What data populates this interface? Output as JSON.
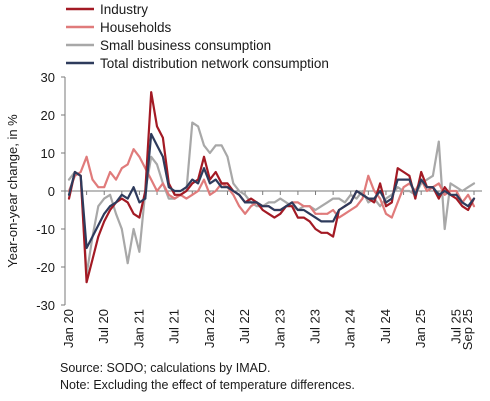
{
  "chart_data": {
    "type": "line",
    "title": "",
    "ylabel": "Year-on-year change, in %",
    "xlabel": "",
    "ylim": [
      -30,
      30
    ],
    "yticks": [
      -30,
      -20,
      -10,
      0,
      10,
      20,
      30
    ],
    "x_tick_labels": [
      "Jan 20",
      "Jul 20",
      "Jan 21",
      "Jul 21",
      "Jan 22",
      "Jul 22",
      "Jan 23",
      "Jul 23",
      "Jan 24",
      "Jul 24",
      "Jan 25",
      "Jul 25",
      "Sep 25"
    ],
    "x_tick_months": [
      0,
      6,
      12,
      18,
      24,
      30,
      36,
      42,
      48,
      54,
      60,
      66,
      68
    ],
    "legend_position": "top-left",
    "series": [
      {
        "name": "Industry",
        "color": "#a31a24",
        "values": [
          -2,
          5,
          4,
          -24,
          -18,
          -12,
          -8,
          -5,
          -3,
          -2,
          -3,
          -6,
          -7,
          0,
          26,
          17,
          14,
          2,
          -1,
          -1,
          0,
          2,
          3,
          9,
          3,
          5,
          2,
          2,
          0,
          -1,
          -3,
          -2,
          -3,
          -5,
          -6,
          -7,
          -6,
          -4,
          -4,
          -7,
          -7,
          -8,
          -10,
          -11,
          -11,
          -12,
          -5,
          -4,
          -3,
          0,
          -1,
          -2,
          -3,
          2,
          -4,
          -3,
          6,
          5,
          4,
          -2,
          5,
          1,
          1,
          -2,
          1,
          -1,
          -2,
          -4,
          -5,
          -2
        ]
      },
      {
        "name": "Households",
        "color": "#e07b7b",
        "values": [
          0,
          4,
          5,
          9,
          3,
          1,
          1,
          5,
          3,
          6,
          7,
          11,
          9,
          6,
          3,
          0,
          2,
          -1,
          -2,
          -1,
          -2,
          -1,
          0,
          3,
          -1,
          0,
          2,
          1,
          -1,
          -4,
          -6,
          -4,
          -3,
          -4,
          -4,
          -5,
          -5,
          -4,
          -3,
          -3,
          -4,
          -4,
          -6,
          -6,
          -6,
          -5,
          -7,
          -6,
          -5,
          -4,
          -2,
          4,
          0,
          -2,
          -6,
          -7,
          -3,
          1,
          2,
          0,
          3,
          0,
          1,
          2,
          -1,
          0,
          0,
          -3,
          -1,
          -4
        ]
      },
      {
        "name": "Small business consumption",
        "color": "#a8a8a8",
        "values": [
          3,
          5,
          4,
          -22,
          -12,
          -4,
          -2,
          -1,
          -6,
          -10,
          -19,
          -10,
          -16,
          0,
          9,
          7,
          2,
          -2,
          -2,
          -1,
          0,
          18,
          17,
          12,
          10,
          12,
          12,
          9,
          2,
          0,
          -1,
          -3,
          -4,
          -4,
          -3,
          -3,
          -2,
          -3,
          -4,
          -5,
          -4,
          -4,
          -5,
          -4,
          -3,
          -2,
          -2,
          -3,
          -1,
          -2,
          0,
          -3,
          -2,
          -4,
          -2,
          -1,
          1,
          0,
          0,
          -1,
          2,
          3,
          4,
          13,
          -10,
          2,
          1,
          0,
          1,
          2
        ]
      },
      {
        "name": "Total distribution network consumption",
        "color": "#2e3b5c",
        "values": [
          -1,
          5,
          4,
          -15,
          -12,
          -9,
          -6,
          -4,
          -3,
          -1,
          -2,
          1,
          -3,
          -2,
          15,
          12,
          9,
          1,
          0,
          0,
          1,
          3,
          2,
          6,
          2,
          3,
          1,
          1,
          0,
          -1,
          -3,
          -3,
          -3,
          -4,
          -4,
          -5,
          -5,
          -4,
          -3,
          -5,
          -5,
          -6,
          -7,
          -8,
          -8,
          -8,
          -5,
          -4,
          -3,
          0,
          -1,
          -2,
          -2,
          0,
          -3,
          -2,
          3,
          3,
          3,
          -1,
          3,
          1,
          1,
          -1,
          0,
          -1,
          -1,
          -3,
          -4,
          -2
        ]
      }
    ]
  },
  "notes": {
    "source": "Source: SODO; calculations by IMAD.",
    "note": "Note: Excluding the effect of temperature differences."
  }
}
